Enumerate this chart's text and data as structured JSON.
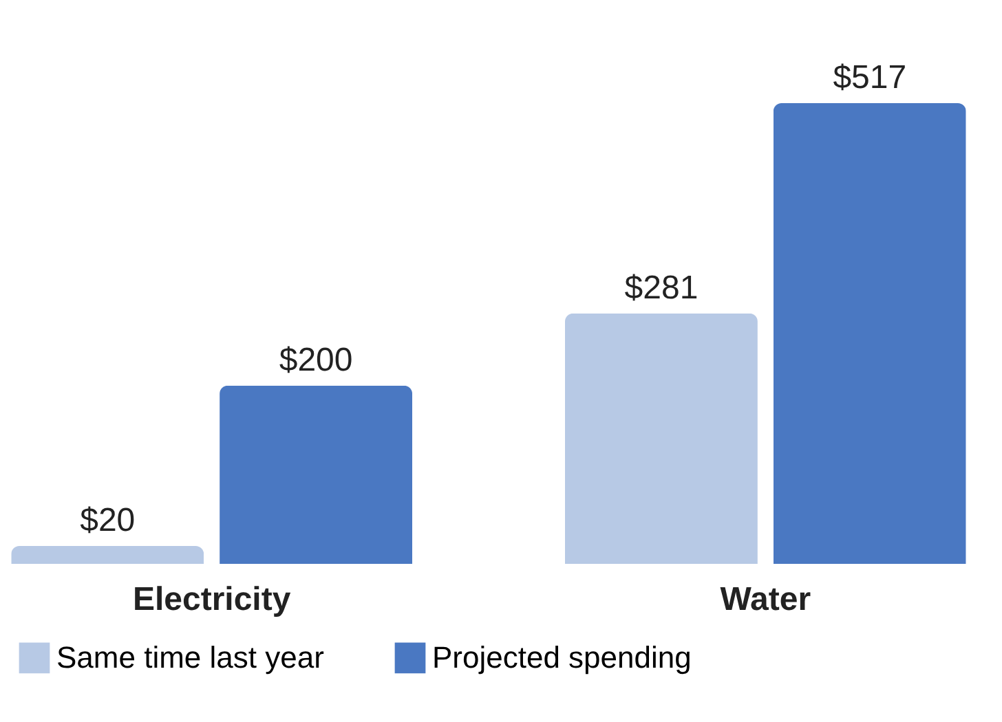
{
  "chart_data": {
    "type": "bar",
    "categories": [
      "Electricity",
      "Water"
    ],
    "series": [
      {
        "name": "Same time last year",
        "color": "#b7c9e5",
        "values": [
          20,
          281
        ],
        "value_labels": [
          "$20",
          "$281"
        ]
      },
      {
        "name": "Projected spending",
        "color": "#4a78c2",
        "values": [
          200,
          517
        ],
        "value_labels": [
          "$200",
          "$517"
        ]
      }
    ],
    "legend": "bottom",
    "grid": false
  }
}
